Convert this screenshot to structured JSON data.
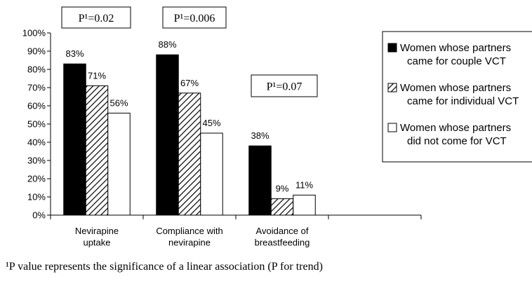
{
  "chart_data": {
    "type": "bar",
    "categories": [
      "Nevirapine uptake",
      "Compliance with nevirapine",
      "Avoidance of breastfeeding",
      null
    ],
    "series": [
      {
        "name": "Women whose partners came for couple VCT",
        "color": "#000000",
        "values": [
          83,
          88,
          38,
          null
        ],
        "value_labels": [
          "83%",
          "88%",
          "38%",
          null
        ]
      },
      {
        "name": "Women whose partners came for individual VCT",
        "color": "#000000",
        "pattern": "hatch",
        "values": [
          71,
          67,
          9,
          null
        ],
        "value_labels": [
          "71%",
          "67%",
          "9%",
          null
        ]
      },
      {
        "name": "Women whose partners did not come for VCT",
        "color": "#ffffff",
        "values": [
          56,
          45,
          11,
          null
        ],
        "value_labels": [
          "56%",
          "45%",
          "11%",
          null
        ]
      }
    ],
    "ylim": [
      0,
      100
    ],
    "yticks": [
      {
        "value": 0,
        "label": "0%"
      },
      {
        "value": 10,
        "label": "10%"
      },
      {
        "value": 20,
        "label": "20%"
      },
      {
        "value": 30,
        "label": "30%"
      },
      {
        "value": 40,
        "label": "40%"
      },
      {
        "value": 50,
        "label": "50%"
      },
      {
        "value": 60,
        "label": "60%"
      },
      {
        "value": 70,
        "label": "70%"
      },
      {
        "value": 80,
        "label": "80%"
      },
      {
        "value": 90,
        "label": "90%"
      },
      {
        "value": 100,
        "label": "100%"
      }
    ],
    "annotations": [
      "P¹=0.02",
      "P¹=0.006",
      "P¹=0.07"
    ],
    "footnote": "¹P value represents the significance of a linear association (P for trend)"
  }
}
